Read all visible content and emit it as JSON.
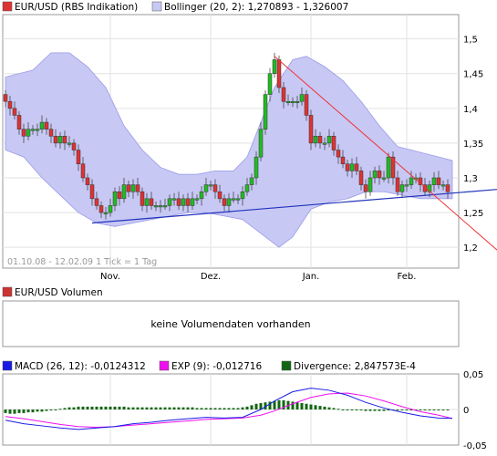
{
  "colors": {
    "up": "#22bb22",
    "down": "#dd3333",
    "bollinger_fill": "#c8c8f5",
    "bollinger_edge": "#9a9ae6",
    "support": "#2233bb",
    "resistance": "#ee3333",
    "macd": "#1a1ae6",
    "exp": "#ee11ee",
    "divergence": "#116611",
    "legend_volume": "#cc3333"
  },
  "price_legend": {
    "instrument": "EUR/USD (RBS Indikation)",
    "bollinger": "Bollinger (20, 2): 1,270893 - 1,326007"
  },
  "range_info": "01.10.08 - 12.02.09   1 Tick = 1 Tag",
  "volume": {
    "legend": "EUR/USD Volumen",
    "message": "keine Volumendaten vorhanden"
  },
  "macd_legend": {
    "macd": "MACD (26, 12): -0,0124312",
    "exp": "EXP (9): -0,012716",
    "divergence": "Divergence: 2,847573E-4"
  },
  "chart_data": [
    {
      "type": "candlestick",
      "x_axis_ticks": [
        "Nov.",
        "Dez.",
        "Jan.",
        "Feb."
      ],
      "x_tick_index": [
        23,
        45,
        67,
        88
      ],
      "y_axis_ticks": [
        "1,5",
        "1,45",
        "1,4",
        "1,35",
        "1,3",
        "1,25",
        "1,2"
      ],
      "y_tick_values": [
        1.5,
        1.45,
        1.4,
        1.35,
        1.3,
        1.25,
        1.2
      ],
      "ylim": [
        1.17,
        1.535
      ],
      "close": [
        1.41,
        1.4,
        1.39,
        1.37,
        1.36,
        1.37,
        1.37,
        1.37,
        1.38,
        1.37,
        1.36,
        1.35,
        1.36,
        1.35,
        1.35,
        1.34,
        1.32,
        1.3,
        1.29,
        1.27,
        1.26,
        1.25,
        1.25,
        1.26,
        1.28,
        1.27,
        1.29,
        1.28,
        1.29,
        1.28,
        1.26,
        1.27,
        1.26,
        1.26,
        1.26,
        1.26,
        1.27,
        1.27,
        1.26,
        1.27,
        1.26,
        1.27,
        1.27,
        1.28,
        1.29,
        1.29,
        1.28,
        1.27,
        1.26,
        1.27,
        1.27,
        1.27,
        1.28,
        1.29,
        1.3,
        1.33,
        1.37,
        1.42,
        1.45,
        1.47,
        1.43,
        1.41,
        1.41,
        1.41,
        1.41,
        1.42,
        1.39,
        1.35,
        1.36,
        1.35,
        1.35,
        1.36,
        1.34,
        1.33,
        1.32,
        1.31,
        1.32,
        1.31,
        1.29,
        1.28,
        1.3,
        1.31,
        1.3,
        1.3,
        1.33,
        1.3,
        1.28,
        1.29,
        1.29,
        1.3,
        1.3,
        1.29,
        1.28,
        1.29,
        1.3,
        1.29,
        1.29,
        1.28
      ],
      "support_line": {
        "from_index": 19,
        "from_value": 1.235,
        "to_index": 98,
        "to_value": 1.278
      },
      "resistance_line": {
        "from_index": 59,
        "from_value": 1.475,
        "to_index": 108,
        "to_value": 1.195
      },
      "bollinger_upper": [
        [
          0,
          1.445
        ],
        [
          6,
          1.455
        ],
        [
          10,
          1.48
        ],
        [
          14,
          1.48
        ],
        [
          18,
          1.46
        ],
        [
          22,
          1.43
        ],
        [
          26,
          1.375
        ],
        [
          30,
          1.34
        ],
        [
          34,
          1.315
        ],
        [
          38,
          1.305
        ],
        [
          42,
          1.305
        ],
        [
          46,
          1.31
        ],
        [
          50,
          1.31
        ],
        [
          53,
          1.33
        ],
        [
          56,
          1.38
        ],
        [
          59,
          1.43
        ],
        [
          63,
          1.47
        ],
        [
          66,
          1.475
        ],
        [
          70,
          1.46
        ],
        [
          74,
          1.44
        ],
        [
          78,
          1.41
        ],
        [
          82,
          1.375
        ],
        [
          86,
          1.345
        ],
        [
          89,
          1.34
        ],
        [
          92,
          1.335
        ],
        [
          95,
          1.33
        ],
        [
          98,
          1.325
        ]
      ],
      "bollinger_lower": [
        [
          0,
          1.34
        ],
        [
          4,
          1.33
        ],
        [
          8,
          1.3
        ],
        [
          12,
          1.275
        ],
        [
          16,
          1.25
        ],
        [
          20,
          1.235
        ],
        [
          24,
          1.23
        ],
        [
          28,
          1.235
        ],
        [
          32,
          1.24
        ],
        [
          36,
          1.245
        ],
        [
          40,
          1.25
        ],
        [
          44,
          1.25
        ],
        [
          48,
          1.245
        ],
        [
          52,
          1.24
        ],
        [
          55,
          1.225
        ],
        [
          58,
          1.21
        ],
        [
          60,
          1.2
        ],
        [
          63,
          1.215
        ],
        [
          67,
          1.255
        ],
        [
          71,
          1.265
        ],
        [
          75,
          1.27
        ],
        [
          79,
          1.28
        ],
        [
          83,
          1.28
        ],
        [
          87,
          1.275
        ],
        [
          91,
          1.27
        ],
        [
          95,
          1.27
        ],
        [
          98,
          1.27
        ]
      ]
    },
    {
      "type": "line",
      "y_axis_ticks": [
        "0,05",
        "0",
        "-0,05"
      ],
      "y_tick_values": [
        0.05,
        0,
        -0.05
      ],
      "ylim": [
        -0.05,
        0.05
      ],
      "series": [
        {
          "name": "MACD (26, 12)",
          "points": [
            [
              0,
              -0.015
            ],
            [
              4,
              -0.02
            ],
            [
              8,
              -0.023
            ],
            [
              12,
              -0.026
            ],
            [
              16,
              -0.028
            ],
            [
              20,
              -0.026
            ],
            [
              24,
              -0.024
            ],
            [
              28,
              -0.02
            ],
            [
              32,
              -0.018
            ],
            [
              36,
              -0.015
            ],
            [
              40,
              -0.013
            ],
            [
              44,
              -0.011
            ],
            [
              48,
              -0.012
            ],
            [
              52,
              -0.011
            ],
            [
              56,
              0.0
            ],
            [
              59,
              0.012
            ],
            [
              63,
              0.025
            ],
            [
              67,
              0.03
            ],
            [
              71,
              0.027
            ],
            [
              75,
              0.02
            ],
            [
              79,
              0.01
            ],
            [
              83,
              0.002
            ],
            [
              87,
              -0.004
            ],
            [
              91,
              -0.009
            ],
            [
              95,
              -0.012
            ],
            [
              98,
              -0.0124
            ]
          ]
        },
        {
          "name": "EXP (9)",
          "points": [
            [
              0,
              -0.01
            ],
            [
              4,
              -0.013
            ],
            [
              8,
              -0.017
            ],
            [
              12,
              -0.021
            ],
            [
              16,
              -0.024
            ],
            [
              20,
              -0.025
            ],
            [
              24,
              -0.024
            ],
            [
              28,
              -0.022
            ],
            [
              32,
              -0.02
            ],
            [
              36,
              -0.018
            ],
            [
              40,
              -0.016
            ],
            [
              44,
              -0.014
            ],
            [
              48,
              -0.013
            ],
            [
              52,
              -0.012
            ],
            [
              56,
              -0.008
            ],
            [
              59,
              -0.002
            ],
            [
              63,
              0.008
            ],
            [
              67,
              0.017
            ],
            [
              71,
              0.022
            ],
            [
              75,
              0.023
            ],
            [
              79,
              0.019
            ],
            [
              83,
              0.012
            ],
            [
              87,
              0.004
            ],
            [
              91,
              -0.003
            ],
            [
              95,
              -0.008
            ],
            [
              98,
              -0.0127
            ]
          ]
        }
      ],
      "divergence": [
        -0.005,
        -0.006,
        -0.006,
        -0.005,
        -0.005,
        -0.004,
        -0.004,
        -0.003,
        -0.003,
        -0.002,
        -0.001,
        0.0,
        0.001,
        0.002,
        0.003,
        0.003,
        0.004,
        0.004,
        0.004,
        0.004,
        0.004,
        0.004,
        0.004,
        0.004,
        0.004,
        0.004,
        0.004,
        0.003,
        0.003,
        0.003,
        0.003,
        0.003,
        0.003,
        0.003,
        0.003,
        0.003,
        0.003,
        0.003,
        0.003,
        0.003,
        0.003,
        0.003,
        0.002,
        0.002,
        0.002,
        0.002,
        0.002,
        0.002,
        0.002,
        0.002,
        0.002,
        0.002,
        0.003,
        0.004,
        0.006,
        0.008,
        0.009,
        0.01,
        0.011,
        0.012,
        0.013,
        0.013,
        0.012,
        0.011,
        0.01,
        0.009,
        0.008,
        0.007,
        0.006,
        0.005,
        0.004,
        0.003,
        0.002,
        0.001,
        0.0,
        -0.001,
        -0.001,
        -0.001,
        -0.001,
        -0.002,
        -0.002,
        -0.002,
        -0.002,
        -0.002,
        -0.001,
        -0.001,
        -0.001,
        0.0,
        0.0,
        0.0,
        0.0,
        0.0,
        0.0,
        0.0,
        0.0,
        0.0,
        0.0,
        0.0
      ]
    }
  ]
}
